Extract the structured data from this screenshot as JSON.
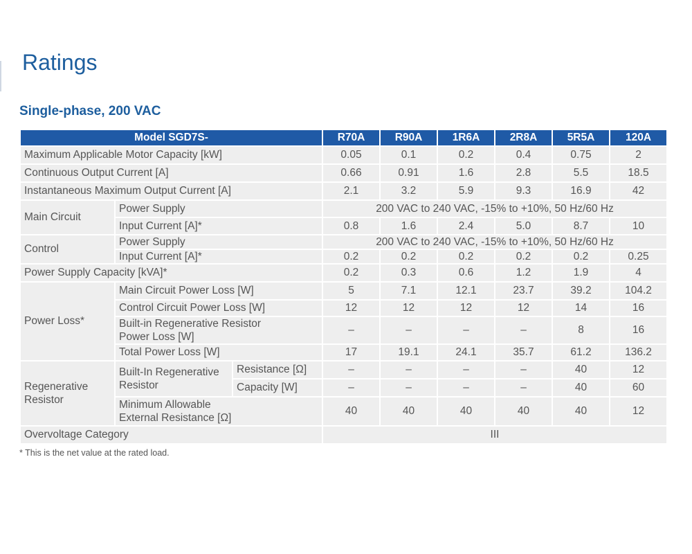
{
  "page": {
    "title": "Ratings",
    "subtitle": "Single-phase, 200 VAC",
    "footnote": "* This is the net value at the rated load."
  },
  "table": {
    "header_model": "Model SGD7S-",
    "models": [
      "R70A",
      "R90A",
      "1R6A",
      "2R8A",
      "5R5A",
      "120A"
    ],
    "max_motor_capacity": {
      "label": "Maximum Applicable Motor Capacity [kW]",
      "values": [
        "0.05",
        "0.1",
        "0.2",
        "0.4",
        "0.75",
        "2"
      ]
    },
    "continuous_output_current": {
      "label": "Continuous Output Current [A]",
      "values": [
        "0.66",
        "0.91",
        "1.6",
        "2.8",
        "5.5",
        "18.5"
      ]
    },
    "instantaneous_max_output_current": {
      "label": "Instantaneous Maximum Output Current [A]",
      "values": [
        "2.1",
        "3.2",
        "5.9",
        "9.3",
        "16.9",
        "42"
      ]
    },
    "main_circuit": {
      "label": "Main Circuit",
      "power_supply_label": "Power Supply",
      "power_supply_value": "200 VAC to 240 VAC, -15% to +10%, 50 Hz/60 Hz",
      "input_current_label": "Input Current [A]*",
      "input_current_values": [
        "0.8",
        "1.6",
        "2.4",
        "5.0",
        "8.7",
        "10"
      ]
    },
    "control": {
      "label": "Control",
      "power_supply_label": "Power Supply",
      "power_supply_value": "200 VAC to 240 VAC, -15% to +10%, 50 Hz/60 Hz",
      "input_current_label": "Input Current [A]*",
      "input_current_values": [
        "0.2",
        "0.2",
        "0.2",
        "0.2",
        "0.2",
        "0.25"
      ]
    },
    "power_supply_capacity": {
      "label": "Power Supply Capacity [kVA]*",
      "values": [
        "0.2",
        "0.3",
        "0.6",
        "1.2",
        "1.9",
        "4"
      ]
    },
    "power_loss": {
      "label": "Power Loss*",
      "main_circuit": {
        "label": "Main Circuit Power Loss [W]",
        "values": [
          "5",
          "7.1",
          "12.1",
          "23.7",
          "39.2",
          "104.2"
        ]
      },
      "control_circuit": {
        "label": "Control Circuit Power Loss [W]",
        "values": [
          "12",
          "12",
          "12",
          "12",
          "14",
          "16"
        ]
      },
      "regen_resistor": {
        "label_line1": "Built-in Regenerative Resistor",
        "label_line2": "Power Loss [W]",
        "values": [
          "–",
          "–",
          "–",
          "–",
          "8",
          "16"
        ]
      },
      "total": {
        "label": "Total Power Loss [W]",
        "values": [
          "17",
          "19.1",
          "24.1",
          "35.7",
          "61.2",
          "136.2"
        ]
      }
    },
    "regenerative_resistor": {
      "label_line1": "Regenerative",
      "label_line2": "Resistor",
      "built_in_line1": "Built-In Regenerative",
      "built_in_line2": "Resistor",
      "resistance": {
        "label": "Resistance [Ω]",
        "values": [
          "–",
          "–",
          "–",
          "–",
          "40",
          "12"
        ]
      },
      "capacity": {
        "label": "Capacity [W]",
        "values": [
          "–",
          "–",
          "–",
          "–",
          "40",
          "60"
        ]
      },
      "min_external": {
        "label_line1": "Minimum Allowable",
        "label_line2": "External Resistance [Ω]",
        "values": [
          "40",
          "40",
          "40",
          "40",
          "40",
          "12"
        ]
      }
    },
    "overvoltage_category": {
      "label": "Overvoltage Category",
      "value": "III"
    }
  }
}
